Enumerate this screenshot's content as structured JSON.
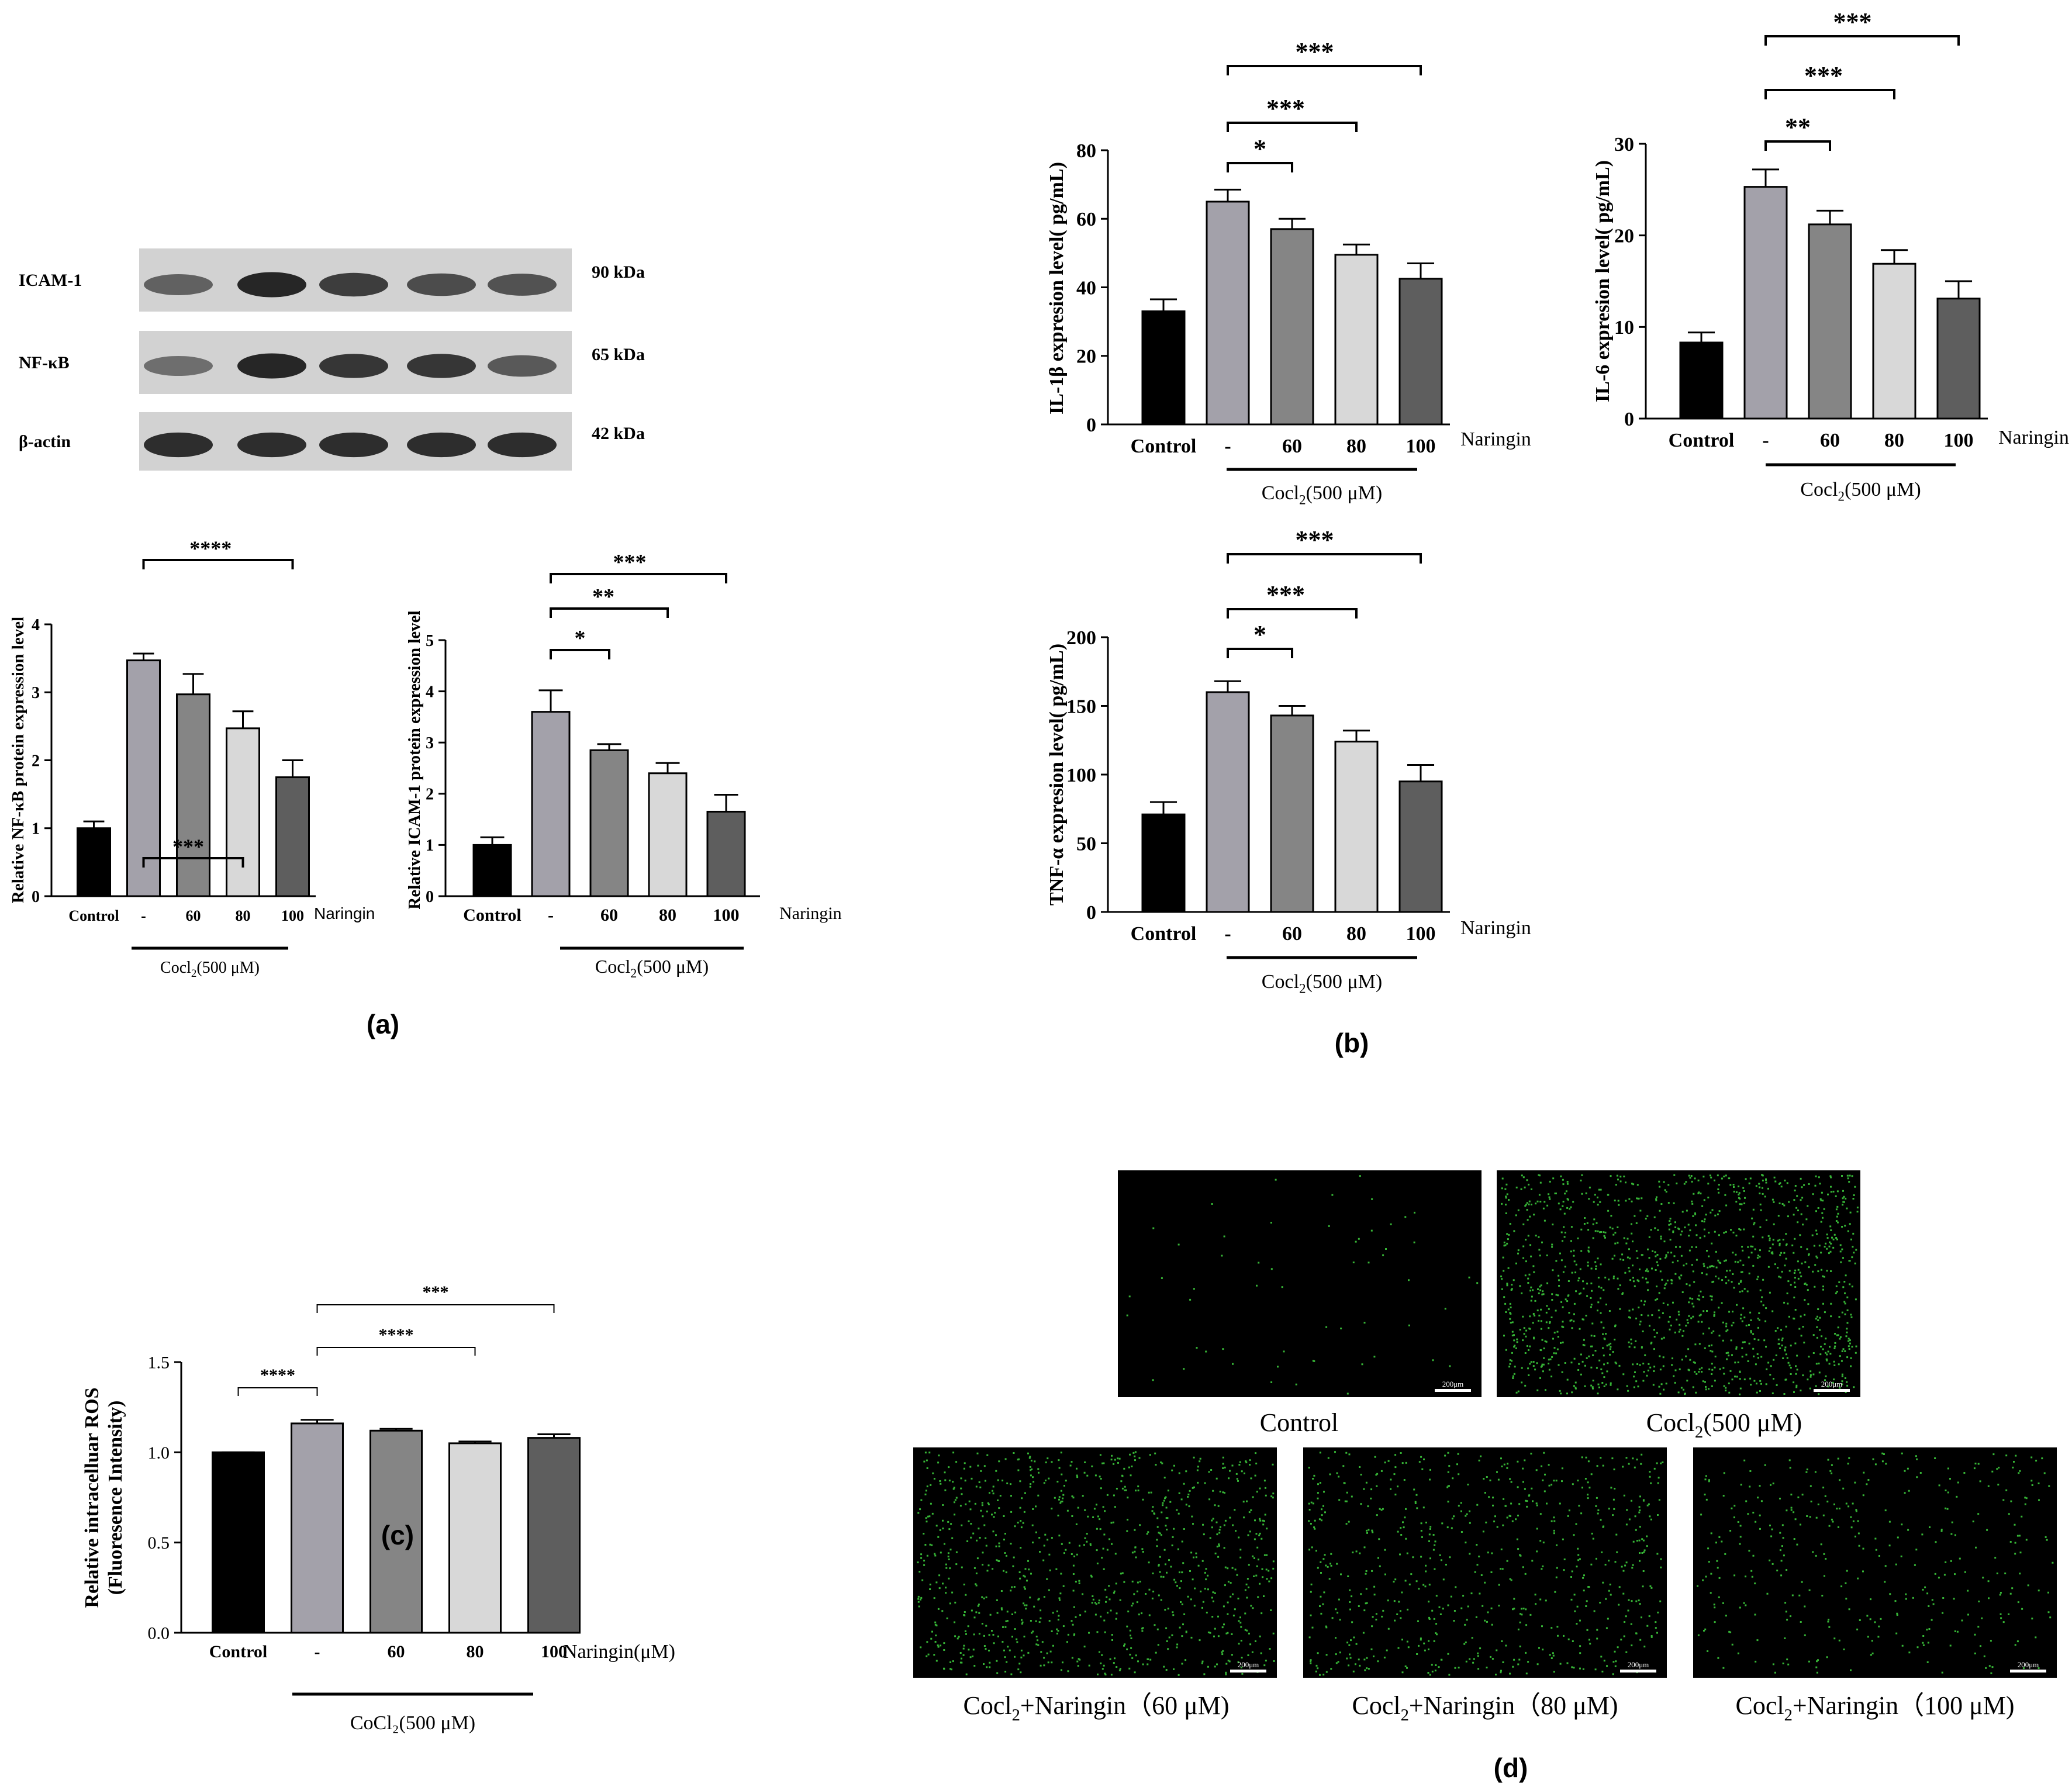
{
  "colors": {
    "control": "#000000",
    "cocl2": "#a3a1aa",
    "n60": "#858585",
    "n80": "#d8d8d8",
    "n100": "#5e5e5e",
    "fluor_bg": "#000000",
    "fluor_cell": "#3fd43f"
  },
  "panel_labels": {
    "a": "(a)",
    "b": "(b)",
    "c": "(c)",
    "d": "(d)"
  },
  "western_blot": {
    "bands": [
      {
        "label": "ICAM-1",
        "mw": "90 kDa",
        "intensity": [
          0.55,
          0.95,
          0.8,
          0.7,
          0.65
        ]
      },
      {
        "label": "NF-κB",
        "mw": "65 kDa",
        "intensity": [
          0.45,
          0.95,
          0.85,
          0.85,
          0.6
        ]
      },
      {
        "label": "β-actin",
        "mw": "42 kDa",
        "intensity": [
          0.9,
          0.9,
          0.9,
          0.9,
          0.9
        ]
      }
    ]
  },
  "chart_data": [
    {
      "id": "nfkb",
      "panel": "a",
      "type": "bar",
      "categories": [
        "Control",
        "-",
        "60",
        "80",
        "100"
      ],
      "values": [
        1.0,
        3.47,
        2.97,
        2.47,
        1.75
      ],
      "errors": [
        0.1,
        0.1,
        0.3,
        0.25,
        0.25
      ],
      "ylabel": "Relative NF-κB protein expression level",
      "ylim": [
        0,
        4
      ],
      "yticks": [
        0,
        1,
        2,
        3,
        4
      ],
      "treatment_label": "Naringin",
      "group_label": "Cocl2(500 μM)",
      "group_label_main": "Cocl",
      "group_label_sub": "2",
      "group_label_rest": "(500 μM)",
      "significance": [
        {
          "from": 1,
          "to": 3,
          "label": "***"
        },
        {
          "from": 1,
          "to": 4,
          "label": "****"
        }
      ]
    },
    {
      "id": "icam",
      "panel": "a",
      "type": "bar",
      "categories": [
        "Control",
        "-",
        "60",
        "80",
        "100"
      ],
      "values": [
        1.0,
        3.6,
        2.85,
        2.4,
        1.65
      ],
      "errors": [
        0.15,
        0.42,
        0.12,
        0.2,
        0.33
      ],
      "ylabel": "Relative ICAM-1 protein expression level",
      "ylim": [
        0,
        5
      ],
      "yticks": [
        0,
        1,
        2,
        3,
        4,
        5
      ],
      "treatment_label": "Naringin",
      "group_label": "Cocl2(500 μM)",
      "group_label_main": "Cocl",
      "group_label_sub": "2",
      "group_label_rest": "(500 μM)",
      "significance": [
        {
          "from": 1,
          "to": 2,
          "label": "*"
        },
        {
          "from": 1,
          "to": 3,
          "label": "**"
        },
        {
          "from": 1,
          "to": 4,
          "label": "***"
        }
      ]
    },
    {
      "id": "il1b",
      "panel": "b",
      "type": "bar",
      "categories": [
        "Control",
        "-",
        "60",
        "80",
        "100"
      ],
      "values": [
        33,
        65,
        57,
        49.5,
        42.5
      ],
      "errors": [
        3.5,
        3.5,
        3,
        3,
        4.5
      ],
      "ylabel": "IL-1β expresion level( pg/mL)",
      "ylim": [
        0,
        80
      ],
      "yticks": [
        0,
        20,
        40,
        60,
        80
      ],
      "treatment_label": "Naringin",
      "group_label": "Cocl2(500 μM)",
      "group_label_main": "Cocl",
      "group_label_sub": "2",
      "group_label_rest": "(500 μM)",
      "significance": [
        {
          "from": 1,
          "to": 2,
          "label": "*"
        },
        {
          "from": 1,
          "to": 3,
          "label": "***"
        },
        {
          "from": 1,
          "to": 4,
          "label": "***"
        }
      ]
    },
    {
      "id": "il6",
      "panel": "b",
      "type": "bar",
      "categories": [
        "Control",
        "-",
        "60",
        "80",
        "100"
      ],
      "values": [
        8.3,
        25.3,
        21.2,
        16.9,
        13.1
      ],
      "errors": [
        1.1,
        1.9,
        1.5,
        1.5,
        1.9
      ],
      "ylabel": "IL-6 expresion level( pg/mL)",
      "ylim": [
        0,
        30
      ],
      "yticks": [
        0,
        10,
        20,
        30
      ],
      "treatment_label": "Naringin",
      "group_label": "Cocl2(500 μM)",
      "group_label_main": "Cocl",
      "group_label_sub": "2",
      "group_label_rest": "(500 μM)",
      "significance": [
        {
          "from": 1,
          "to": 2,
          "label": "**"
        },
        {
          "from": 1,
          "to": 3,
          "label": "***"
        },
        {
          "from": 1,
          "to": 4,
          "label": "***"
        }
      ]
    },
    {
      "id": "tnfa",
      "panel": "b",
      "type": "bar",
      "categories": [
        "Control",
        "-",
        "60",
        "80",
        "100"
      ],
      "values": [
        71,
        160,
        143,
        124,
        95
      ],
      "errors": [
        9,
        8,
        7,
        8,
        12
      ],
      "ylabel": "TNF-α expresion level( pg/mL)",
      "ylim": [
        0,
        200
      ],
      "yticks": [
        0,
        50,
        100,
        150,
        200
      ],
      "treatment_label": "Naringin",
      "group_label": "Cocl2(500 μM)",
      "group_label_main": "Cocl",
      "group_label_sub": "2",
      "group_label_rest": "(500 μM)",
      "significance": [
        {
          "from": 1,
          "to": 2,
          "label": "*"
        },
        {
          "from": 1,
          "to": 3,
          "label": "***"
        },
        {
          "from": 1,
          "to": 4,
          "label": "***"
        }
      ]
    },
    {
      "id": "ros",
      "panel": "c",
      "type": "bar",
      "categories": [
        "Control",
        "-",
        "60",
        "80",
        "100"
      ],
      "values": [
        1.0,
        1.16,
        1.12,
        1.05,
        1.08
      ],
      "errors": [
        0.0,
        0.02,
        0.01,
        0.01,
        0.02
      ],
      "ylabel": "Relative intracelluar ROS",
      "ylabel2": "(Fluoresence Intensity)",
      "ylim": [
        0,
        1.5
      ],
      "yticks": [
        0.0,
        0.5,
        1.0,
        1.5
      ],
      "ytick_labels": [
        "0.0",
        "0.5",
        "1.0",
        "1.5"
      ],
      "treatment_label": "Naringin(μM)",
      "group_label": "CoCl₂(500 μM)",
      "significance": [
        {
          "from": 0,
          "to": 1,
          "label": "****"
        },
        {
          "from": 1,
          "to": 3,
          "label": "****"
        },
        {
          "from": 1,
          "to": 4,
          "label": "***"
        }
      ]
    }
  ],
  "fluorescence": [
    {
      "caption_main": "Control",
      "caption_sub": "",
      "caption_rest": "",
      "scale": "200μm",
      "density": 0.04
    },
    {
      "caption_main": "Cocl",
      "caption_sub": "2",
      "caption_rest": "(500 μM)",
      "scale": "200μm",
      "density": 1.0
    },
    {
      "caption_main": "Cocl",
      "caption_sub": "2",
      "caption_rest": "+Naringin（60 μM)",
      "scale": "200μm",
      "density": 0.7
    },
    {
      "caption_main": "Cocl",
      "caption_sub": "2",
      "caption_rest": "+Naringin（80 μM)",
      "scale": "200μm",
      "density": 0.5
    },
    {
      "caption_main": "Cocl",
      "caption_sub": "2",
      "caption_rest": "+Naringin（100 μM)",
      "scale": "200μm",
      "density": 0.28
    }
  ]
}
